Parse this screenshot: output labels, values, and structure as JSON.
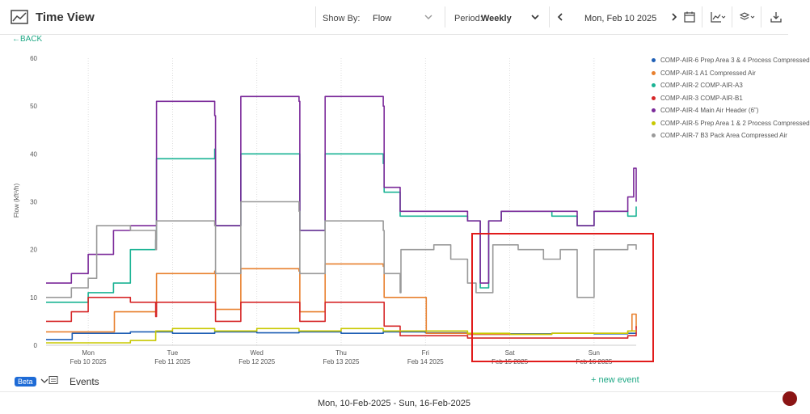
{
  "header": {
    "title": "Time View",
    "show_by_label": "Show By:",
    "show_by_value": "Flow",
    "period_label": "Period:",
    "period_value": "Weekly",
    "current_date": "Mon, Feb 10 2025",
    "icons": [
      "line-chart-icon",
      "calendar-icon",
      "chart-type-icon",
      "layers-icon",
      "download-icon"
    ]
  },
  "back_label": "←BACK",
  "events": {
    "beta_label": "Beta",
    "title": "Events",
    "new_event_label": "+ new event"
  },
  "footer": {
    "range": "Mon, 10-Feb-2025 - Sun, 16-Feb-2025"
  },
  "colors": {
    "accent": "#1fa885",
    "highlight": "#e11b1b",
    "beta": "#1e6bd6"
  },
  "chart_data": {
    "type": "line",
    "ylabel": "Flow (kft³/h)",
    "xlabel": "",
    "ylim": [
      0,
      60
    ],
    "yticks": [
      0,
      10,
      20,
      30,
      40,
      50,
      60
    ],
    "xlim": [
      0,
      7
    ],
    "x_ticks": [
      {
        "x": 0.5,
        "day": "Mon",
        "date": "Feb 10 2025"
      },
      {
        "x": 1.5,
        "day": "Tue",
        "date": "Feb 11 2025"
      },
      {
        "x": 2.5,
        "day": "Wed",
        "date": "Feb 12 2025"
      },
      {
        "x": 3.5,
        "day": "Thu",
        "date": "Feb 13 2025"
      },
      {
        "x": 4.5,
        "day": "Fri",
        "date": "Feb 14 2025"
      },
      {
        "x": 5.5,
        "day": "Sat",
        "date": "Feb 15 2025"
      },
      {
        "x": 6.5,
        "day": "Sun",
        "date": "Feb 16 2025"
      }
    ],
    "grid": "vertical-dotted",
    "legend_position": "right",
    "x_unit": "days since Mon Feb 10 2025 00:00",
    "series": [
      {
        "name": "COMP-AIR-6 Prep Area 3 & 4 Process Compressed",
        "color": "#1f5fb5",
        "x": [
          0,
          0.3,
          0.31,
          1.0,
          1.5,
          2.0,
          2.5,
          3.0,
          3.5,
          4.0,
          4.5,
          5.0,
          5.5,
          6.0,
          6.5,
          6.9,
          7.0
        ],
        "y": [
          1.2,
          1.2,
          2.5,
          2.8,
          2.5,
          2.8,
          2.6,
          2.8,
          2.5,
          2.8,
          2.6,
          2.3,
          2.4,
          2.5,
          2.4,
          2.5,
          2.6
        ]
      },
      {
        "name": "COMP-AIR-1 A1 Compressed Air",
        "color": "#e8802e",
        "x": [
          0,
          0.8,
          0.81,
          1.3,
          1.31,
          2.0,
          2.01,
          2.3,
          2.31,
          3.0,
          3.01,
          3.3,
          3.31,
          4.0,
          4.01,
          4.5,
          4.51,
          5.0,
          6.0,
          6.9,
          6.95,
          7.0
        ],
        "y": [
          2.8,
          2.8,
          7.0,
          7.0,
          15.0,
          15.5,
          7.5,
          7.5,
          16.0,
          15.5,
          7.0,
          7.0,
          17.0,
          16.5,
          10.0,
          10.0,
          2.5,
          2.3,
          2.5,
          3.0,
          6.5,
          3.5
        ]
      },
      {
        "name": "COMP-AIR-2 COMP-AIR-A3",
        "color": "#1ab394",
        "x": [
          0,
          0.3,
          0.5,
          0.8,
          1.0,
          1.3,
          1.31,
          2.0,
          2.01,
          2.3,
          2.31,
          3.0,
          3.01,
          3.3,
          3.31,
          4.0,
          4.01,
          4.2,
          5.0,
          5.15,
          5.25,
          5.4,
          6.0,
          6.3,
          6.5,
          6.9,
          7.0
        ],
        "y": [
          9.0,
          9.0,
          11.0,
          13.0,
          20.0,
          22.0,
          39.0,
          41.0,
          25.0,
          25.0,
          40.0,
          40.0,
          24.0,
          24.0,
          40.0,
          38.0,
          32.0,
          27.0,
          26.0,
          12.0,
          26.0,
          28.0,
          27.0,
          25.0,
          28.0,
          27.0,
          29.0
        ]
      },
      {
        "name": "COMP-AIR-3 COMP-AIR-B1",
        "color": "#d62728",
        "x": [
          0,
          0.3,
          0.5,
          1.0,
          1.3,
          1.31,
          2.0,
          2.01,
          2.3,
          2.31,
          3.0,
          3.01,
          3.3,
          3.31,
          4.0,
          4.01,
          4.2,
          5.0,
          6.0,
          6.9,
          7.0
        ],
        "y": [
          5.0,
          7.0,
          10.0,
          9.0,
          6.0,
          9.0,
          9.0,
          5.0,
          5.0,
          9.0,
          9.0,
          5.0,
          5.0,
          9.0,
          9.0,
          4.0,
          2.0,
          1.5,
          1.5,
          2.0,
          4.0
        ]
      },
      {
        "name": "COMP-AIR-4 Main Air Header (6”)",
        "color": "#7b2a9a",
        "x": [
          0,
          0.3,
          0.5,
          0.8,
          1.0,
          1.3,
          1.31,
          2.0,
          2.01,
          2.3,
          2.31,
          3.0,
          3.01,
          3.3,
          3.31,
          4.0,
          4.01,
          4.2,
          5.0,
          5.15,
          5.25,
          5.4,
          6.0,
          6.3,
          6.5,
          6.9,
          6.97,
          7.0
        ],
        "y": [
          13.0,
          15.0,
          19.0,
          24.0,
          25.0,
          25.0,
          51.0,
          48.0,
          25.0,
          25.0,
          52.0,
          51.0,
          24.0,
          24.0,
          52.0,
          50.0,
          33.0,
          28.0,
          26.0,
          13.0,
          26.0,
          28.0,
          28.0,
          25.0,
          28.0,
          31.0,
          37.0,
          30.0
        ]
      },
      {
        "name": "COMP-AIR-5 Prep Area 1 & 2 Process Compressed",
        "color": "#c8c800",
        "x": [
          0,
          0.8,
          1.0,
          1.3,
          1.5,
          2.0,
          2.5,
          3.0,
          3.5,
          4.0,
          4.5,
          5.0,
          5.5,
          6.0,
          6.5,
          6.9,
          7.0
        ],
        "y": [
          0.5,
          0.5,
          1.0,
          3.0,
          3.5,
          3.0,
          3.5,
          3.0,
          3.5,
          3.0,
          3.0,
          2.5,
          2.3,
          2.5,
          2.5,
          3.0,
          3.0
        ]
      },
      {
        "name": "COMP-AIR-7 B3 Pack Area Compressed Air",
        "color": "#9a9a9a",
        "x": [
          0,
          0.3,
          0.5,
          0.6,
          1.0,
          1.3,
          1.31,
          2.0,
          2.01,
          2.3,
          2.31,
          3.0,
          3.01,
          3.3,
          3.31,
          4.0,
          4.01,
          4.2,
          4.21,
          4.6,
          4.8,
          5.0,
          5.1,
          5.3,
          5.6,
          5.9,
          6.1,
          6.3,
          6.5,
          6.8,
          6.9,
          7.0
        ],
        "y": [
          10.0,
          12.0,
          14.0,
          25.0,
          24.0,
          20.0,
          26.0,
          25.0,
          15.0,
          15.0,
          30.0,
          28.0,
          15.0,
          15.0,
          26.0,
          24.0,
          15.0,
          11.0,
          20.0,
          21.0,
          18.0,
          13.0,
          11.0,
          21.0,
          20.0,
          18.0,
          20.0,
          10.0,
          20.0,
          20.0,
          21.0,
          20.0
        ]
      }
    ]
  }
}
